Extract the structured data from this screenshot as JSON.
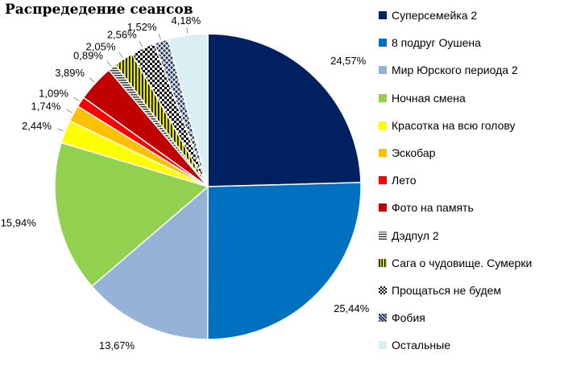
{
  "chart_data": {
    "type": "pie",
    "title": "Распредедение сеансов",
    "start_angle_deg": 0,
    "direction": "clockwise",
    "series": [
      {
        "name": "Суперсемейка 2",
        "value": 24.57,
        "label": "24,57%",
        "color": "#002060",
        "pattern": "solid"
      },
      {
        "name": "8 подруг Оушена",
        "value": 25.44,
        "label": "25,44%",
        "color": "#0070C0",
        "pattern": "solid"
      },
      {
        "name": "Мир Юрского периода 2",
        "value": 13.67,
        "label": "13,67%",
        "color": "#95B3D7",
        "pattern": "solid"
      },
      {
        "name": "Ночная смена",
        "value": 15.94,
        "label": "15,94%",
        "color": "#92D050",
        "pattern": "solid"
      },
      {
        "name": "Красотка на всю голову",
        "value": 2.44,
        "label": "2,44%",
        "color": "#FFFF00",
        "pattern": "solid"
      },
      {
        "name": "Эскобар",
        "value": 1.74,
        "label": "1,74%",
        "color": "#FFC000",
        "pattern": "solid"
      },
      {
        "name": "Лето",
        "value": 1.09,
        "label": "1,09%",
        "color": "#FF0000",
        "pattern": "solid"
      },
      {
        "name": "Фото на память",
        "value": 3.89,
        "label": "3,89%",
        "color": "#C00000",
        "pattern": "solid"
      },
      {
        "name": "Дэдпул 2",
        "value": 0.89,
        "label": "0,89%",
        "color": "#404040",
        "pattern": "hlines"
      },
      {
        "name": "Сага о чудовище. Сумерки",
        "value": 2.05,
        "label": "2,05%",
        "color": "#E5E500",
        "pattern": "vlines"
      },
      {
        "name": "Прощаться не будем",
        "value": 2.56,
        "label": "2,56%",
        "color": "#000000",
        "pattern": "checker"
      },
      {
        "name": "Фобия",
        "value": 1.52,
        "label": "1,52%",
        "color": "#1F3864",
        "pattern": "diag"
      },
      {
        "name": "Остальные",
        "value": 4.18,
        "label": "4,18%",
        "color": "#DAEEF3",
        "pattern": "solid"
      }
    ]
  }
}
